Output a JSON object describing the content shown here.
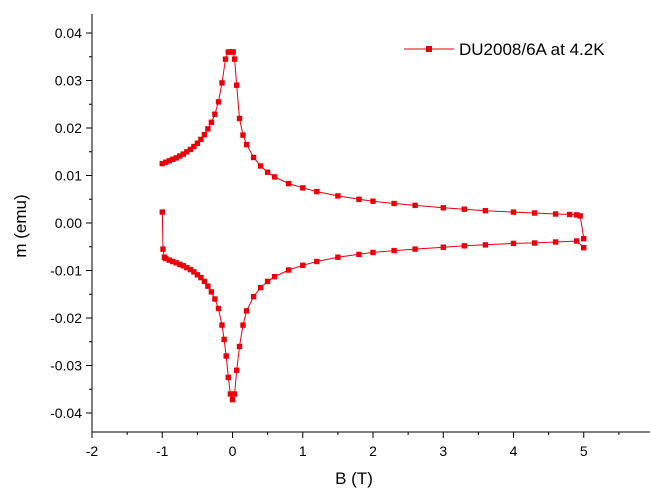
{
  "chart_data": {
    "type": "line",
    "title": "",
    "xlabel": "B (T)",
    "ylabel": "m (emu)",
    "xlim": [
      -2,
      6
    ],
    "ylim": [
      -0.044,
      0.044
    ],
    "x_ticks": [
      -2,
      -1,
      0,
      1,
      2,
      3,
      4,
      5
    ],
    "x_tick_labels": [
      "-2",
      "-1",
      "0",
      "1",
      "2",
      "3",
      "4",
      "5"
    ],
    "y_ticks": [
      -0.04,
      -0.03,
      -0.02,
      -0.01,
      0.0,
      0.01,
      0.02,
      0.03,
      0.04
    ],
    "y_tick_labels": [
      "-0.04",
      "-0.03",
      "-0.02",
      "-0.01",
      "0.00",
      "0.01",
      "0.02",
      "0.03",
      "0.04"
    ],
    "grid": false,
    "legend_position": "top-right",
    "colors": {
      "series": "#e8000b",
      "axis": "#000000"
    },
    "series": [
      {
        "name": "DU2008/6A at 4.2K",
        "marker": "square",
        "upper_branch": {
          "x": [
            -1.0,
            -0.95,
            -0.9,
            -0.85,
            -0.8,
            -0.75,
            -0.7,
            -0.65,
            -0.6,
            -0.55,
            -0.5,
            -0.45,
            -0.4,
            -0.35,
            -0.3,
            -0.25,
            -0.2,
            -0.15,
            -0.1,
            -0.06,
            -0.03,
            -0.01,
            0.01,
            0.03,
            0.06,
            0.1,
            0.15,
            0.2,
            0.3,
            0.4,
            0.5,
            0.6,
            0.8,
            1.0,
            1.2,
            1.5,
            1.8,
            2.0,
            2.3,
            2.6,
            3.0,
            3.3,
            3.6,
            4.0,
            4.3,
            4.6,
            4.8,
            4.9,
            4.95,
            5.0
          ],
          "y": [
            0.0125,
            0.0128,
            0.0131,
            0.0134,
            0.0137,
            0.0141,
            0.0145,
            0.015,
            0.0155,
            0.0161,
            0.0168,
            0.0176,
            0.0186,
            0.0198,
            0.0212,
            0.0229,
            0.0255,
            0.0295,
            0.0345,
            0.036,
            0.036,
            0.036,
            0.036,
            0.0345,
            0.029,
            0.022,
            0.0185,
            0.0165,
            0.0138,
            0.012,
            0.0107,
            0.0097,
            0.0083,
            0.0074,
            0.0066,
            0.0057,
            0.005,
            0.0046,
            0.0041,
            0.0037,
            0.0032,
            0.0029,
            0.0026,
            0.0023,
            0.0021,
            0.0019,
            0.0018,
            0.0017,
            0.0015,
            -0.0033
          ]
        },
        "lower_branch": {
          "x": [
            -1.0,
            -0.99,
            -0.97,
            -0.95,
            -0.9,
            -0.85,
            -0.8,
            -0.75,
            -0.7,
            -0.65,
            -0.6,
            -0.55,
            -0.5,
            -0.45,
            -0.4,
            -0.35,
            -0.3,
            -0.25,
            -0.2,
            -0.15,
            -0.12,
            -0.09,
            -0.06,
            -0.03,
            0.0,
            0.03,
            0.06,
            0.1,
            0.15,
            0.2,
            0.3,
            0.4,
            0.5,
            0.6,
            0.8,
            1.0,
            1.2,
            1.5,
            1.8,
            2.0,
            2.3,
            2.6,
            3.0,
            3.3,
            3.6,
            4.0,
            4.3,
            4.6,
            4.9,
            5.0
          ],
          "y": [
            0.0023,
            -0.0055,
            -0.0072,
            -0.0075,
            -0.0078,
            -0.0081,
            -0.0084,
            -0.0087,
            -0.009,
            -0.0094,
            -0.0098,
            -0.0103,
            -0.0109,
            -0.0115,
            -0.0123,
            -0.0133,
            -0.0145,
            -0.016,
            -0.018,
            -0.0215,
            -0.0245,
            -0.028,
            -0.0325,
            -0.036,
            -0.0372,
            -0.036,
            -0.031,
            -0.026,
            -0.0215,
            -0.0185,
            -0.0155,
            -0.0136,
            -0.0123,
            -0.0113,
            -0.0099,
            -0.0089,
            -0.0081,
            -0.0072,
            -0.0066,
            -0.0062,
            -0.0058,
            -0.0055,
            -0.0051,
            -0.0048,
            -0.0046,
            -0.0043,
            -0.0042,
            -0.004,
            -0.0038,
            -0.0052
          ]
        }
      }
    ]
  }
}
